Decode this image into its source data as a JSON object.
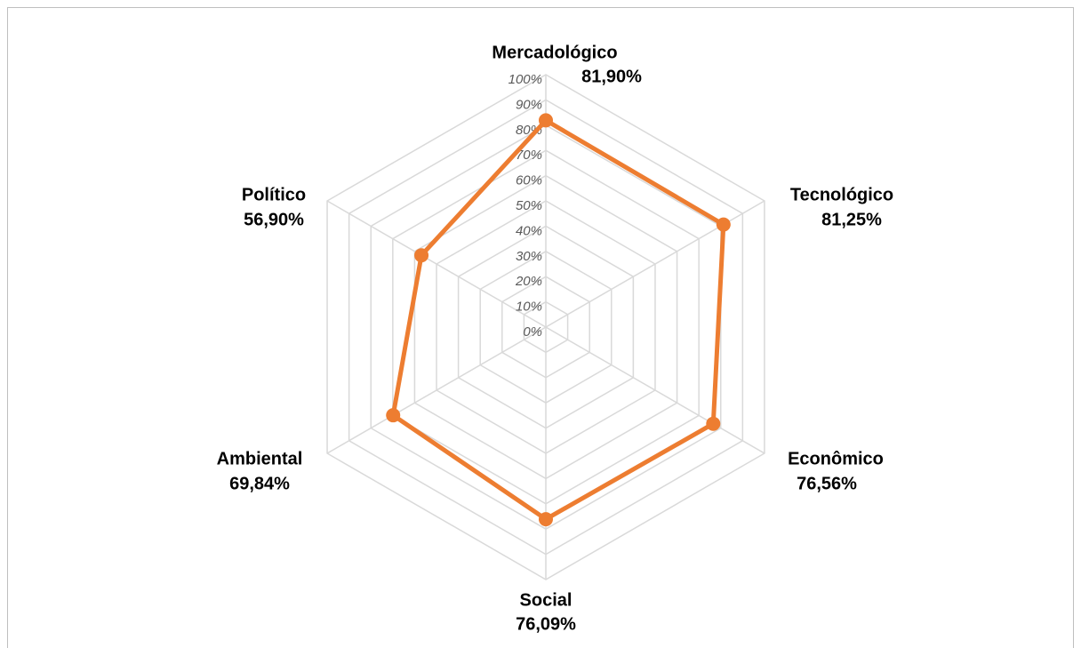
{
  "chart_data": {
    "type": "radar",
    "categories": [
      "Mercadológico",
      "Tecnológico",
      "Econômico",
      "Social",
      "Ambiental",
      "Político"
    ],
    "values": [
      81.9,
      81.25,
      76.56,
      76.09,
      69.84,
      56.9
    ],
    "value_labels": [
      "81,90%",
      "81,25%",
      "76,56%",
      "76,09%",
      "69,84%",
      "56,90%"
    ],
    "color": "#ED7D31",
    "ylim": [
      0,
      100
    ],
    "yticks": [
      {
        "value": 0,
        "label": "0%"
      },
      {
        "value": 10,
        "label": "10%"
      },
      {
        "value": 20,
        "label": "20%"
      },
      {
        "value": 30,
        "label": "30%"
      },
      {
        "value": 40,
        "label": "40%"
      },
      {
        "value": 50,
        "label": "50%"
      },
      {
        "value": 60,
        "label": "60%"
      },
      {
        "value": 70,
        "label": "70%"
      },
      {
        "value": 80,
        "label": "80%"
      },
      {
        "value": 90,
        "label": "90%"
      },
      {
        "value": 100,
        "label": "100%"
      }
    ],
    "grid": true
  }
}
